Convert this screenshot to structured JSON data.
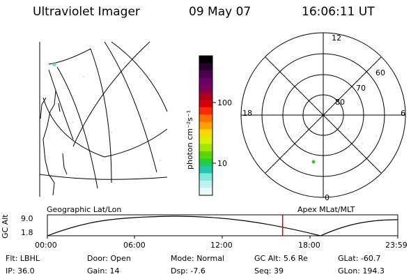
{
  "header": {
    "instrument": "Ultraviolet Imager",
    "date": "09 May 07",
    "time": "16:06:11 UT"
  },
  "colorbar": {
    "label": "photon cm⁻²s⁻¹",
    "ticks": [
      "100",
      "10"
    ],
    "colors": [
      "#000000",
      "#2a0030",
      "#500050",
      "#6a006a",
      "#80005a",
      "#b00018",
      "#d80008",
      "#ff2800",
      "#ff7000",
      "#ffa000",
      "#ffd800",
      "#d8f000",
      "#a0e800",
      "#58d800",
      "#20d040",
      "#20c8b0",
      "#80e8e0",
      "#c0f0f0",
      "#e8fafa"
    ]
  },
  "polar": {
    "hour_labels": {
      "top": "12",
      "bottom": "0",
      "left": "18",
      "right": "6"
    },
    "lat_labels": [
      "60",
      "70",
      "80"
    ]
  },
  "labels": {
    "geo": "Geographic Lat/Lon",
    "apex": "Apex MLat/MLT"
  },
  "timeline": {
    "ylabel": "GC Alt",
    "yticks": [
      "9.0",
      "1.8"
    ],
    "xticks": [
      "00:00",
      "06:00",
      "12:00",
      "18:00",
      "23:59"
    ],
    "current_time_marker": "16:06",
    "marker_color": "#d00000"
  },
  "footer": [
    [
      {
        "label": "Flt:",
        "value": "LBHL"
      },
      {
        "label": "Door:",
        "value": "Open"
      },
      {
        "label": "Mode:",
        "value": "Normal"
      },
      {
        "label": "GC Alt:",
        "value": "5.6 Re"
      },
      {
        "label": "GLat:",
        "value": "-60.7"
      }
    ],
    [
      {
        "label": "IP:",
        "value": "36.0"
      },
      {
        "label": "Gain:",
        "value": "14"
      },
      {
        "label": "Dsp:",
        "value": "-7.6"
      },
      {
        "label": "Seq:",
        "value": "39"
      },
      {
        "label": "GLon:",
        "value": "194.3"
      }
    ]
  ]
}
